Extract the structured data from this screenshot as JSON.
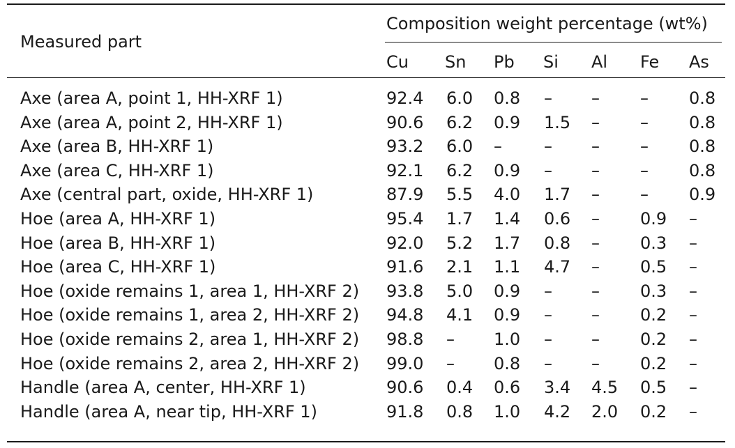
{
  "table": {
    "measured_part_header": "Measured part",
    "group_header": "Composition weight percentage (wt%)",
    "columns": [
      "Cu",
      "Sn",
      "Pb",
      "Si",
      "Al",
      "Fe",
      "As"
    ],
    "rows": [
      {
        "part": "Axe (area A, point 1, HH-XRF 1)",
        "values": [
          "92.4",
          "6.0",
          "0.8",
          "–",
          "–",
          "–",
          "0.8"
        ]
      },
      {
        "part": "Axe (area A, point 2, HH-XRF 1)",
        "values": [
          "90.6",
          "6.2",
          "0.9",
          "1.5",
          "–",
          "–",
          "0.8"
        ]
      },
      {
        "part": "Axe (area B, HH-XRF 1)",
        "values": [
          "93.2",
          "6.0",
          "–",
          "–",
          "–",
          "–",
          "0.8"
        ]
      },
      {
        "part": "Axe (area C, HH-XRF 1)",
        "values": [
          "92.1",
          "6.2",
          "0.9",
          "–",
          "–",
          "–",
          "0.8"
        ]
      },
      {
        "part": "Axe (central part, oxide, HH-XRF 1)",
        "values": [
          "87.9",
          "5.5",
          "4.0",
          "1.7",
          "–",
          "–",
          "0.9"
        ]
      },
      {
        "part": "Hoe (area A, HH-XRF 1)",
        "values": [
          "95.4",
          "1.7",
          "1.4",
          "0.6",
          "–",
          "0.9",
          "–"
        ]
      },
      {
        "part": "Hoe (area B, HH-XRF 1)",
        "values": [
          "92.0",
          "5.2",
          "1.7",
          "0.8",
          "–",
          "0.3",
          "–"
        ]
      },
      {
        "part": "Hoe (area C, HH-XRF 1)",
        "values": [
          "91.6",
          "2.1",
          "1.1",
          "4.7",
          "–",
          "0.5",
          "–"
        ]
      },
      {
        "part": "Hoe (oxide remains 1, area 1, HH-XRF 2)",
        "values": [
          "93.8",
          "5.0",
          "0.9",
          "–",
          "–",
          "0.3",
          "–"
        ]
      },
      {
        "part": "Hoe (oxide remains 1, area 2, HH-XRF 2)",
        "values": [
          "94.8",
          "4.1",
          "0.9",
          "–",
          "–",
          "0.2",
          "–"
        ]
      },
      {
        "part": "Hoe (oxide remains 2, area 1, HH-XRF 2)",
        "values": [
          "98.8",
          "–",
          "1.0",
          "–",
          "–",
          "0.2",
          "–"
        ]
      },
      {
        "part": "Hoe (oxide remains 2, area 2, HH-XRF 2)",
        "values": [
          "99.0",
          "–",
          "0.8",
          "–",
          "–",
          "0.2",
          "–"
        ]
      },
      {
        "part": "Handle (area A, center, HH-XRF 1)",
        "values": [
          "90.6",
          "0.4",
          "0.6",
          "3.4",
          "4.5",
          "0.5",
          "–"
        ]
      },
      {
        "part": "Handle (area A, near tip, HH-XRF 1)",
        "values": [
          "91.8",
          "0.8",
          "1.0",
          "4.2",
          "2.0",
          "0.2",
          "–"
        ]
      }
    ]
  }
}
